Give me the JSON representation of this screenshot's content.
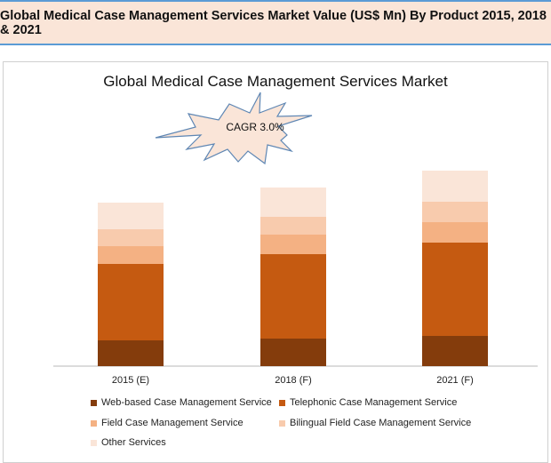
{
  "header": {
    "title": "Global Medical Case Management Services Market Value (US$ Mn) By Product 2015, 2018 & 2021"
  },
  "chart_data": {
    "type": "bar",
    "stacked": true,
    "title": "Global Medical Case Management Services Market",
    "annotation": "CAGR 3.0%",
    "categories": [
      "2015 (E)",
      "2018 (F)",
      "2021 (F)"
    ],
    "y_axis_shown": false,
    "grid": false,
    "legend_position": "bottom",
    "series": [
      {
        "name": "Web-based Case Management Service",
        "color": "#843c0c",
        "values": [
          29,
          31,
          34
        ]
      },
      {
        "name": "Telephonic Case Management Service",
        "color": "#c55a11",
        "values": [
          86,
          95,
          105
        ]
      },
      {
        "name": "Field Case Management Service",
        "color": "#f4b183",
        "values": [
          20,
          22,
          23
        ]
      },
      {
        "name": "Bilingual Field Case Management Service",
        "color": "#f8cbad",
        "values": [
          19,
          20,
          23
        ]
      },
      {
        "name": "Other Services",
        "color": "#fae5d8",
        "values": [
          30,
          33,
          35
        ]
      }
    ]
  }
}
